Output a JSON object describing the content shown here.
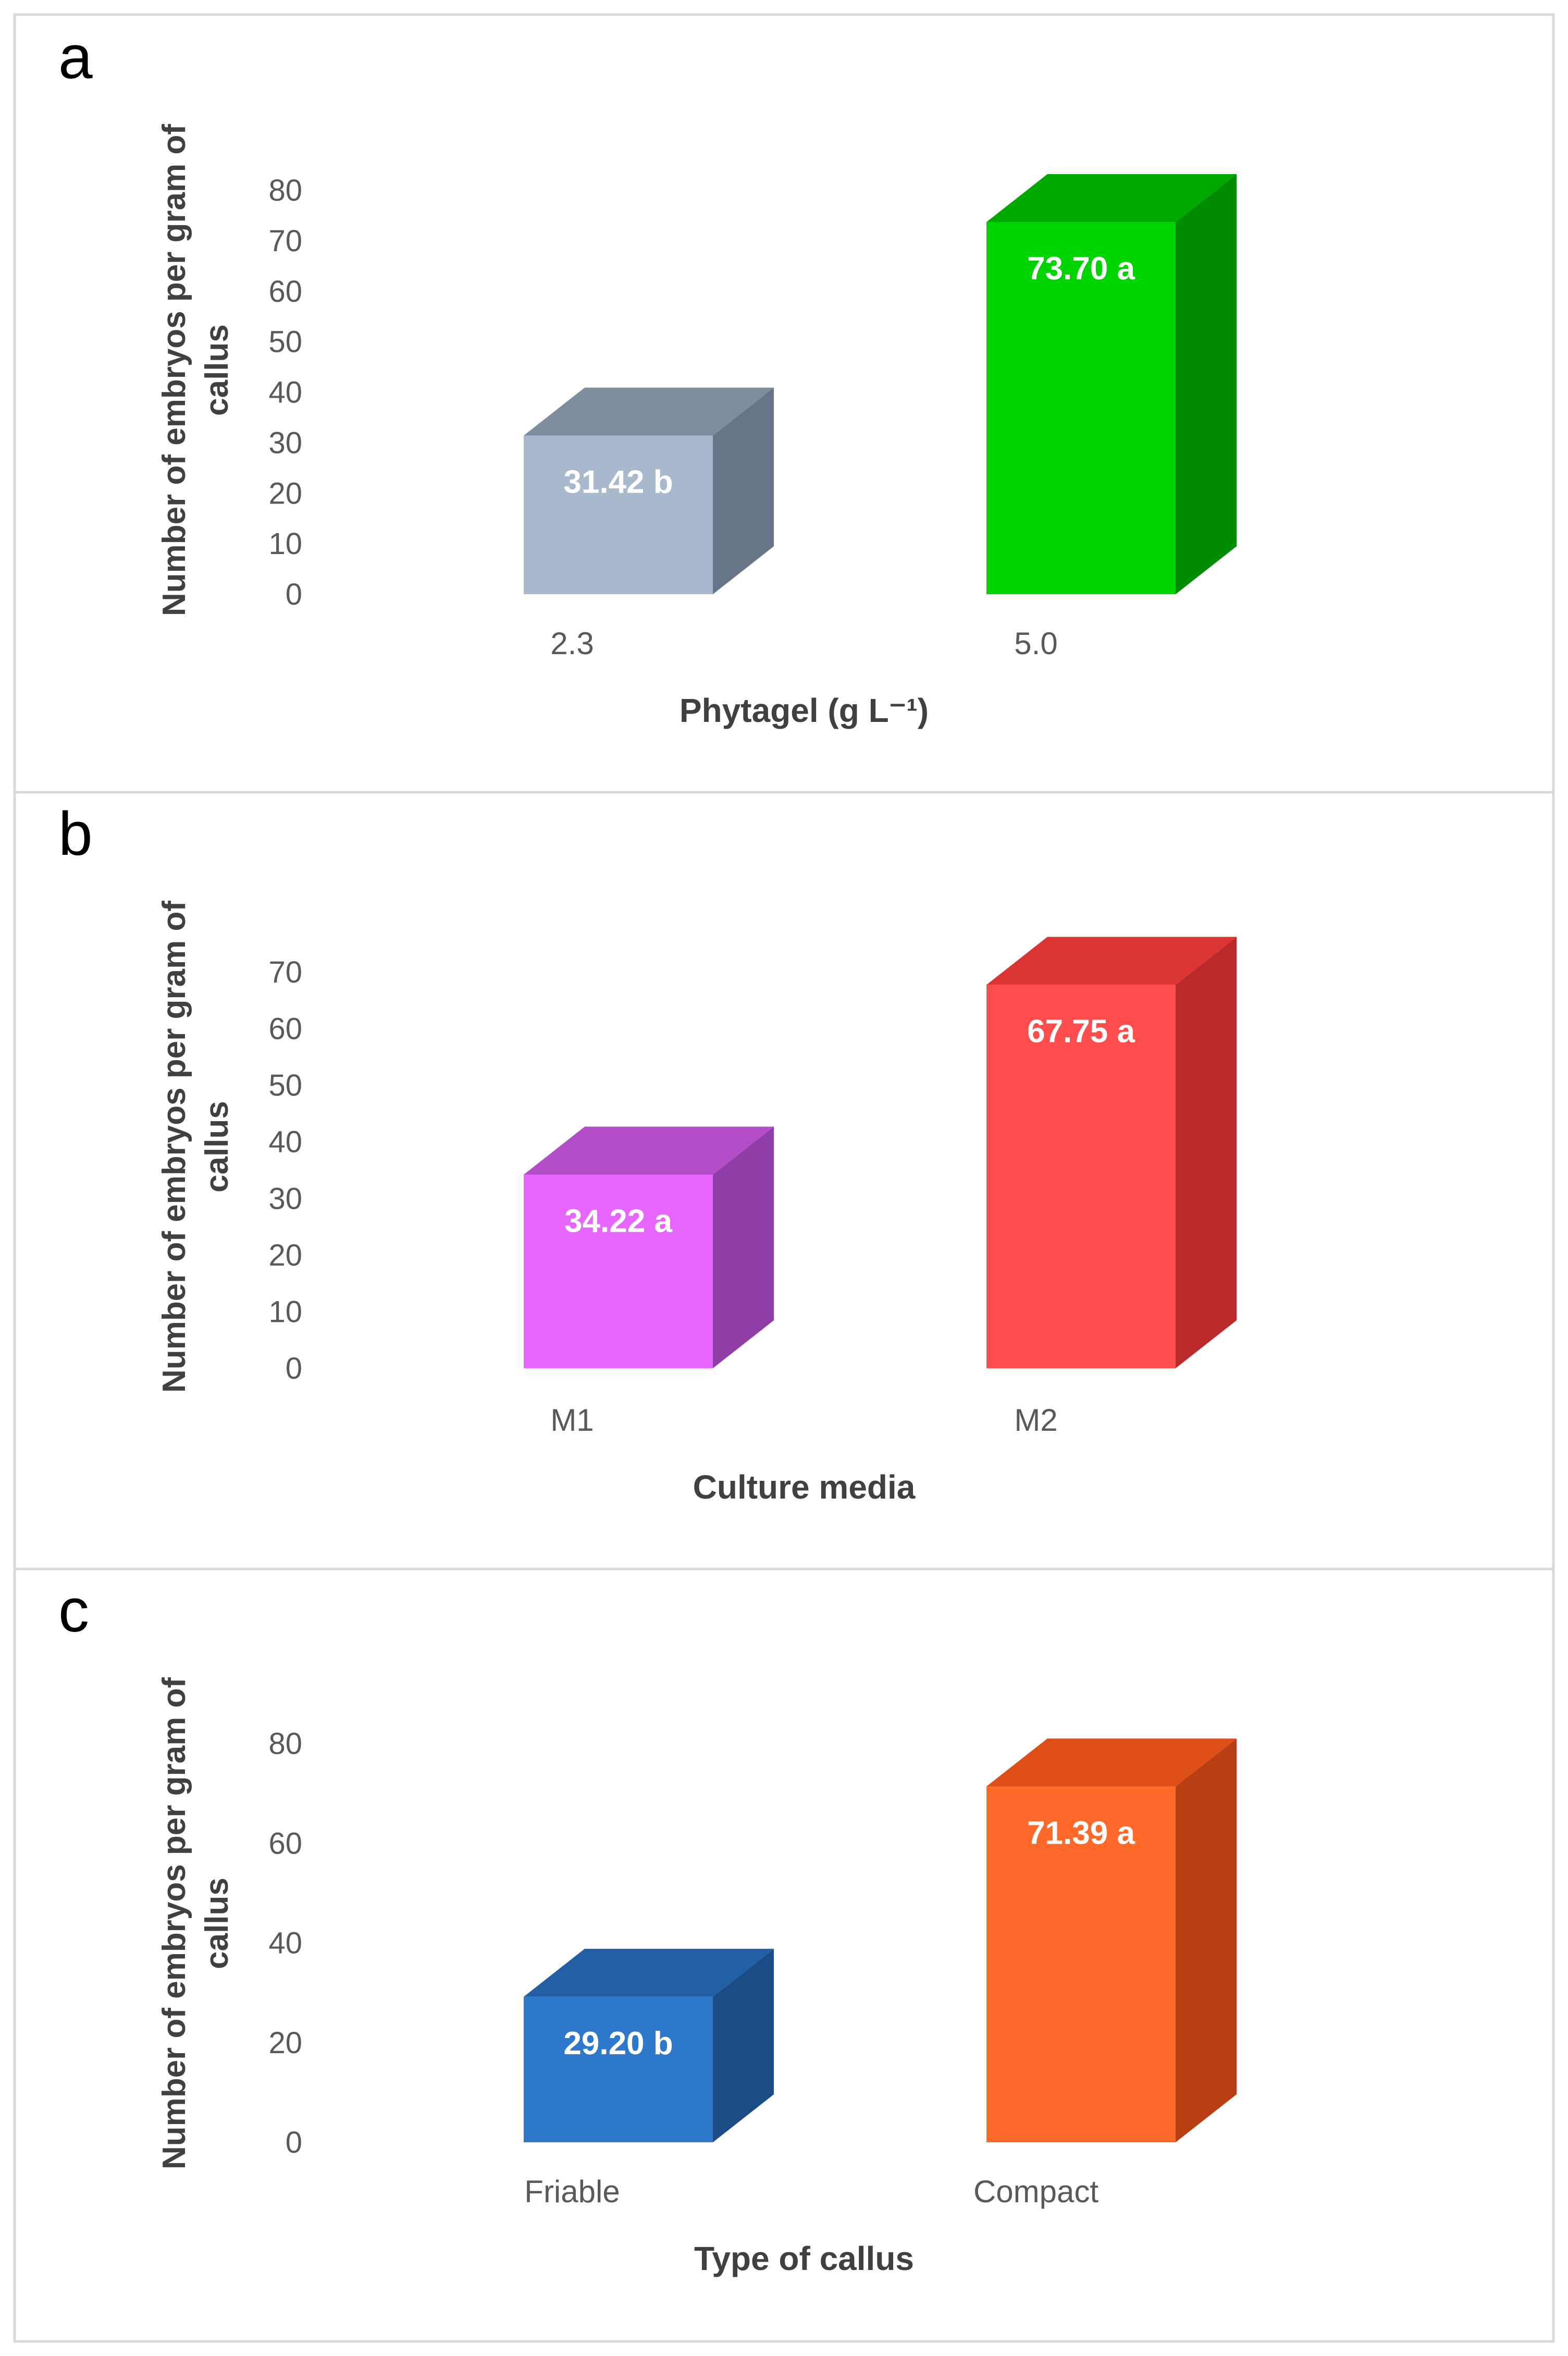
{
  "chart_data": [
    {
      "type": "bar",
      "panel": "a",
      "categories": [
        "2.3",
        "5.0"
      ],
      "values": [
        31.42,
        73.7
      ],
      "value_labels": [
        "31.42 b",
        "73.70 a"
      ],
      "ticks": [
        0,
        10,
        20,
        30,
        40,
        50,
        60,
        70,
        80
      ],
      "ylim": [
        0,
        80
      ],
      "xlabel": "Phytagel (g L⁻¹)",
      "ylabel_lines": [
        "Number of embryos per gram of",
        "callus"
      ],
      "colors": [
        {
          "front": "#a8b8cd",
          "top": "#7e8d9e",
          "side": "#687588"
        },
        {
          "front": "#00d400",
          "top": "#00a900",
          "side": "#008c00"
        }
      ]
    },
    {
      "type": "bar",
      "panel": "b",
      "categories": [
        "M1",
        "M2"
      ],
      "values": [
        34.22,
        67.75
      ],
      "value_labels": [
        "34.22 a",
        "67.75 a"
      ],
      "ticks": [
        0,
        10,
        20,
        30,
        40,
        50,
        60,
        70
      ],
      "ylim": [
        0,
        70
      ],
      "xlabel": "Culture media",
      "ylabel_lines": [
        "Number of embryos per gram of",
        "callus"
      ],
      "colors": [
        {
          "front": "#e766ff",
          "top": "#b44ec8",
          "side": "#8e3ea6"
        },
        {
          "front": "#ff4d4d",
          "top": "#dc3333",
          "side": "#bb2a2a"
        }
      ]
    },
    {
      "type": "bar",
      "panel": "c",
      "categories": [
        "Friable",
        "Compact"
      ],
      "values": [
        29.2,
        71.39
      ],
      "value_labels": [
        "29.20 b",
        "71.39 a"
      ],
      "ticks": [
        0,
        20,
        40,
        60,
        80
      ],
      "ylim": [
        0,
        80
      ],
      "xlabel": "Type of callus",
      "ylabel_lines": [
        "Number of embryos per gram of",
        "callus"
      ],
      "colors": [
        {
          "front": "#2e78cc",
          "top": "#225fa4",
          "side": "#1b4c86"
        },
        {
          "front": "#ff6a2a",
          "top": "#de4f18",
          "side": "#b83e14"
        }
      ]
    }
  ]
}
